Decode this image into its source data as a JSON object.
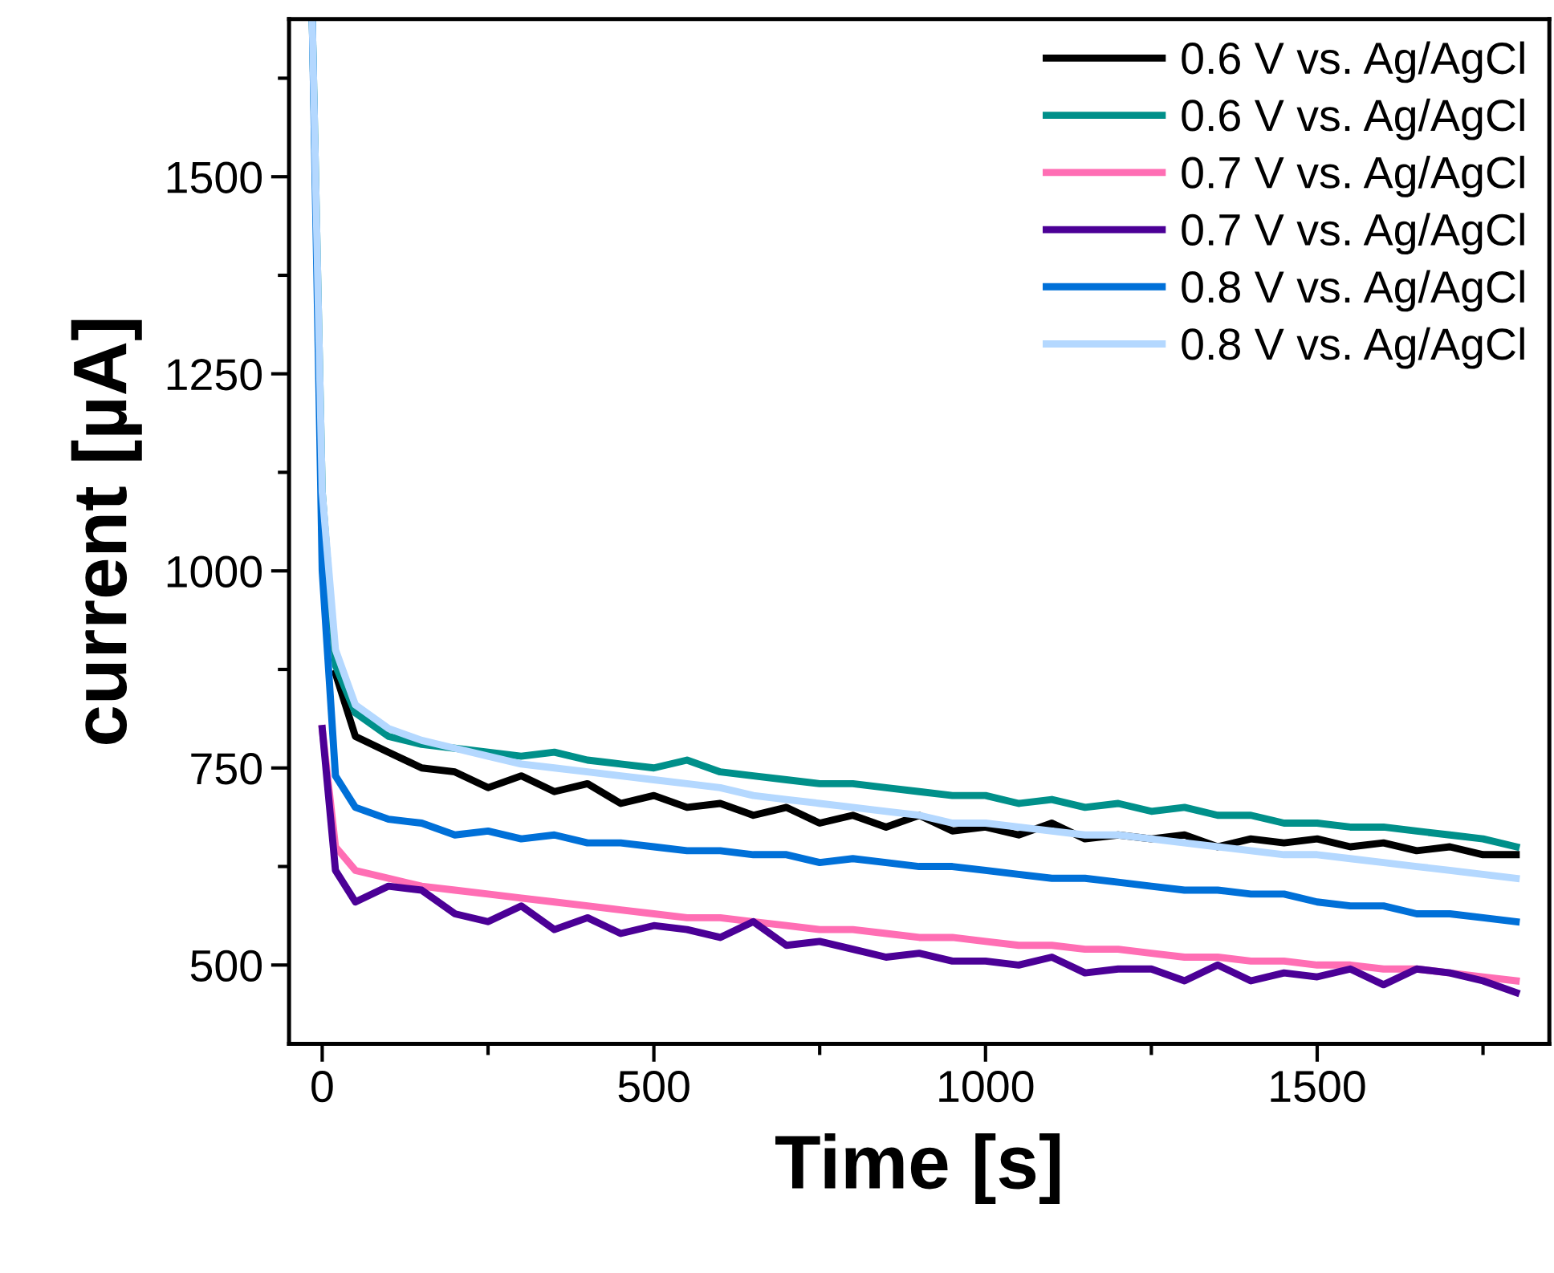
{
  "chart_data": {
    "type": "line",
    "xlabel": "Time [s]",
    "ylabel": "current [µA]",
    "x": [
      -15,
      0,
      20,
      50,
      100,
      150,
      200,
      250,
      300,
      350,
      400,
      450,
      500,
      550,
      600,
      650,
      700,
      750,
      800,
      850,
      900,
      950,
      1000,
      1050,
      1100,
      1150,
      1200,
      1250,
      1300,
      1350,
      1400,
      1450,
      1500,
      1550,
      1600,
      1650,
      1700,
      1750,
      1800
    ],
    "series": [
      {
        "name": "0.6 V vs. Ag/AgCl",
        "color": "#000000",
        "values": [
          null,
          null,
          870,
          790,
          770,
          750,
          745,
          725,
          740,
          720,
          730,
          705,
          715,
          700,
          705,
          690,
          700,
          680,
          690,
          675,
          690,
          670,
          675,
          665,
          680,
          660,
          665,
          660,
          665,
          650,
          660,
          655,
          660,
          650,
          655,
          645,
          650,
          640,
          640
        ]
      },
      {
        "name": "0.6 V vs. Ag/AgCl",
        "color": "#00908a",
        "values": [
          1700,
          1100,
          880,
          820,
          790,
          780,
          775,
          770,
          765,
          770,
          760,
          755,
          750,
          760,
          745,
          740,
          735,
          730,
          730,
          725,
          720,
          715,
          715,
          705,
          710,
          700,
          705,
          695,
          700,
          690,
          690,
          680,
          680,
          675,
          675,
          670,
          665,
          660,
          650
        ]
      },
      {
        "name": "0.7 V vs. Ag/AgCl",
        "color": "#ff6eb4",
        "values": [
          null,
          800,
          650,
          620,
          610,
          600,
          595,
          590,
          585,
          580,
          575,
          570,
          565,
          560,
          560,
          555,
          550,
          545,
          545,
          540,
          535,
          535,
          530,
          525,
          525,
          520,
          520,
          515,
          510,
          510,
          505,
          505,
          500,
          500,
          495,
          495,
          490,
          485,
          480
        ]
      },
      {
        "name": "0.7 V vs. Ag/AgCl",
        "color": "#4b0096",
        "values": [
          null,
          800,
          620,
          580,
          600,
          595,
          565,
          555,
          575,
          545,
          560,
          540,
          550,
          545,
          535,
          555,
          525,
          530,
          520,
          510,
          515,
          505,
          505,
          500,
          510,
          490,
          495,
          495,
          480,
          500,
          480,
          490,
          485,
          495,
          475,
          495,
          490,
          480,
          465
        ]
      },
      {
        "name": "0.8 V vs. Ag/AgCl",
        "color": "#0070d8",
        "values": [
          1700,
          1000,
          740,
          700,
          685,
          680,
          665,
          670,
          660,
          665,
          655,
          655,
          650,
          645,
          645,
          640,
          640,
          630,
          635,
          630,
          625,
          625,
          620,
          615,
          610,
          610,
          605,
          600,
          595,
          595,
          590,
          590,
          580,
          575,
          575,
          565,
          565,
          560,
          555
        ]
      },
      {
        "name": "0.8 V vs. Ag/AgCl",
        "color": "#b4d8ff",
        "values": [
          1700,
          1100,
          900,
          830,
          800,
          785,
          775,
          765,
          755,
          750,
          745,
          740,
          735,
          730,
          725,
          715,
          710,
          705,
          700,
          695,
          690,
          680,
          680,
          675,
          670,
          665,
          665,
          660,
          655,
          650,
          645,
          640,
          640,
          635,
          630,
          625,
          620,
          615,
          610
        ]
      }
    ],
    "xlim": [
      -50,
      1850
    ],
    "ylim": [
      400,
      1700
    ],
    "xticks": [
      0,
      {
        "value": 250,
        "label": null
      },
      500,
      {
        "value": 750,
        "label": null
      },
      1000,
      {
        "value": 1250,
        "label": null
      },
      1500,
      {
        "value": 1750,
        "label": null
      }
    ],
    "yticks": [
      500,
      {
        "value": 625,
        "label": null
      },
      750,
      {
        "value": 875,
        "label": null
      },
      1000,
      {
        "value": 1125,
        "label": null
      },
      1250,
      {
        "value": 1375,
        "label": null
      },
      1500,
      {
        "value": 1625,
        "label": null
      }
    ],
    "grid": false,
    "legend": "top right",
    "marker": "none",
    "line_style": "solid"
  }
}
